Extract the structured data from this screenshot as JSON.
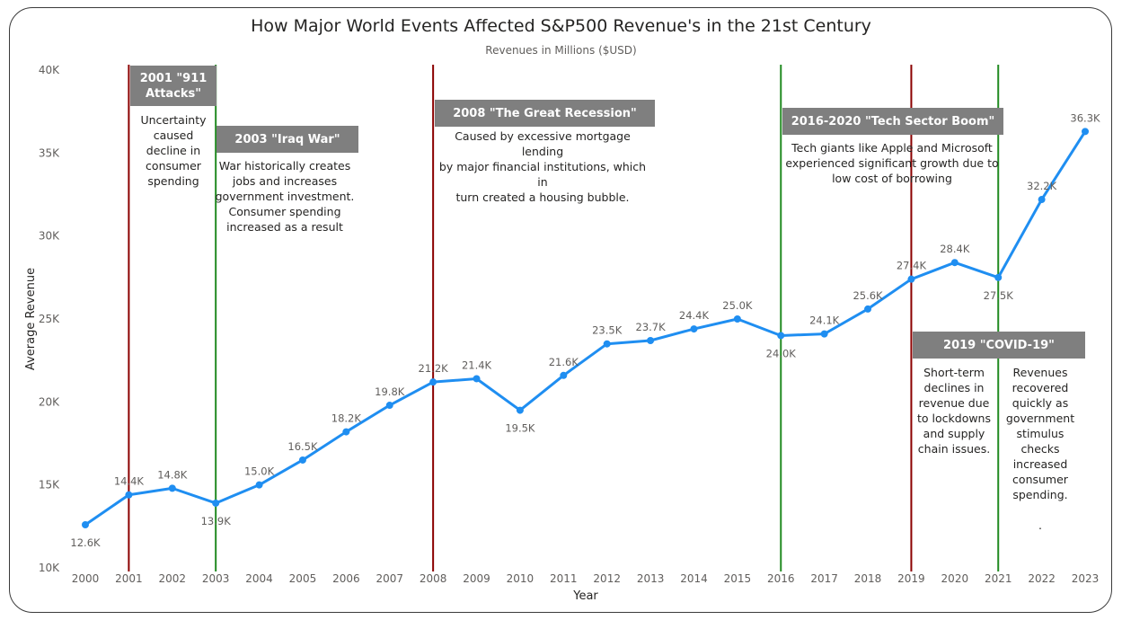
{
  "title": "How Major World Events Affected S&P500 Revenue's in the 21st Century",
  "subtitle": "Revenues in Millions ($USD)",
  "chart_data": {
    "type": "line",
    "title": "How Major World Events Affected S&P500 Revenue's in the 21st Century",
    "subtitle": "Revenues in Millions ($USD)",
    "xlabel": "Year",
    "ylabel": "Average Revenue",
    "ylim": [
      10000,
      40000
    ],
    "y_ticks": [
      10000,
      15000,
      20000,
      25000,
      30000,
      35000,
      40000
    ],
    "y_tick_labels": [
      "10K",
      "15K",
      "20K",
      "25K",
      "30K",
      "35K",
      "40K"
    ],
    "grid": false,
    "line_color": "#1f8ef1",
    "x": [
      "2000",
      "2001",
      "2002",
      "2003",
      "2004",
      "2005",
      "2006",
      "2007",
      "2008",
      "2009",
      "2010",
      "2011",
      "2012",
      "2013",
      "2014",
      "2015",
      "2016",
      "2017",
      "2018",
      "2019",
      "2020",
      "2021",
      "2022",
      "2023"
    ],
    "values": [
      12600,
      14400,
      14800,
      13900,
      15000,
      16500,
      18200,
      19800,
      21200,
      21400,
      19500,
      21600,
      23500,
      23700,
      24400,
      25000,
      24000,
      24100,
      25600,
      27400,
      28400,
      27500,
      32200,
      36300
    ],
    "data_labels": [
      "12.6K",
      "14.4K",
      "14.8K",
      "13.9K",
      "15.0K",
      "16.5K",
      "18.2K",
      "19.8K",
      "21.2K",
      "21.4K",
      "19.5K",
      "21.6K",
      "23.5K",
      "23.7K",
      "24.4K",
      "25.0K",
      "24.0K",
      "24.1K",
      "25.6K",
      "27.4K",
      "28.4K",
      "27.5K",
      "32.2K",
      "36.3K"
    ],
    "event_lines": [
      {
        "year": "2001",
        "color": "#8b0000"
      },
      {
        "year": "2003",
        "color": "#228b22"
      },
      {
        "year": "2008",
        "color": "#8b0000"
      },
      {
        "year": "2016",
        "color": "#228b22"
      },
      {
        "year": "2019",
        "color": "#8b0000"
      },
      {
        "year": "2021",
        "color": "#228b22"
      }
    ]
  },
  "annotations": {
    "a911": {
      "title": "2001 \"911 Attacks\"",
      "text": "Uncertainty\ncaused\ndecline in\nconsumer\nspending"
    },
    "iraq": {
      "title": "2003 \"Iraq War\"",
      "text": "War historically creates\njobs and increases\ngovernment investment.\nConsumer spending\nincreased as a result"
    },
    "recession": {
      "title": "2008 \"The Great Recession\"",
      "text": "Caused by excessive mortgage lending\nby major financial institutions, which in\nturn created a housing bubble."
    },
    "tech": {
      "title": "2016-2020 \"Tech Sector Boom\"",
      "text": "Tech giants like Apple and Microsoft\nexperienced significant growth due to\nlow cost of borrowing"
    },
    "covid": {
      "title": "2019 \"COVID-19\"",
      "text_left": "Short-term\ndeclines in\nrevenue due\nto lockdowns\nand supply\nchain issues.",
      "text_right": "Revenues\nrecovered\nquickly as\ngovernment\nstimulus\nchecks\nincreased\nconsumer\nspending.\n\n."
    }
  }
}
